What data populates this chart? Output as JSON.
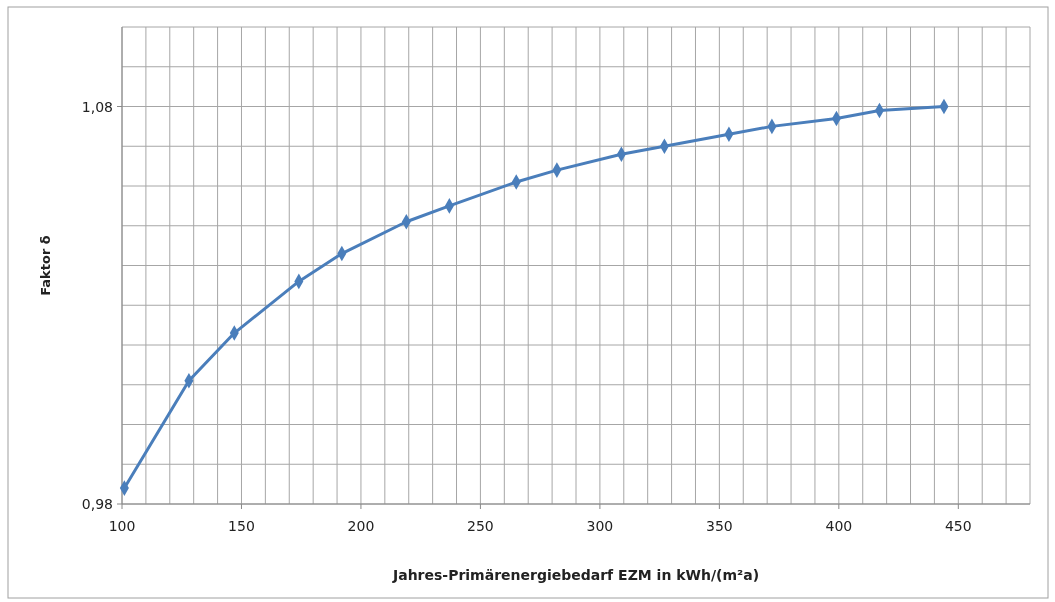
{
  "chart_data": {
    "type": "line",
    "xlabel": "Jahres-Primärenergiebedarf EZM in kWh/(m²a)",
    "ylabel": "Faktor δ",
    "x": [
      101,
      128,
      147,
      174,
      192,
      219,
      237,
      265,
      282,
      309,
      327,
      354,
      372,
      399,
      417,
      444
    ],
    "series": [
      {
        "color": "#4a7ebb",
        "values": [
          0.984,
          1.011,
          1.023,
          1.036,
          1.043,
          1.051,
          1.055,
          1.061,
          1.064,
          1.068,
          1.07,
          1.073,
          1.075,
          1.077,
          1.079,
          1.08
        ]
      }
    ],
    "xlim": [
      100,
      480
    ],
    "xticks": [
      100,
      {
        "value": 110,
        "label": null
      },
      {
        "value": 120,
        "label": null
      },
      {
        "value": 130,
        "label": null
      },
      {
        "value": 140,
        "label": null
      },
      150,
      {
        "value": 160,
        "label": null
      },
      {
        "value": 170,
        "label": null
      },
      {
        "value": 180,
        "label": null
      },
      {
        "value": 190,
        "label": null
      },
      200,
      {
        "value": 210,
        "label": null
      },
      {
        "value": 220,
        "label": null
      },
      {
        "value": 230,
        "label": null
      },
      {
        "value": 240,
        "label": null
      },
      250,
      {
        "value": 260,
        "label": null
      },
      {
        "value": 270,
        "label": null
      },
      {
        "value": 280,
        "label": null
      },
      {
        "value": 290,
        "label": null
      },
      300,
      {
        "value": 310,
        "label": null
      },
      {
        "value": 320,
        "label": null
      },
      {
        "value": 330,
        "label": null
      },
      {
        "value": 340,
        "label": null
      },
      350,
      {
        "value": 360,
        "label": null
      },
      {
        "value": 370,
        "label": null
      },
      {
        "value": 380,
        "label": null
      },
      {
        "value": 390,
        "label": null
      },
      400,
      {
        "value": 410,
        "label": null
      },
      {
        "value": 420,
        "label": null
      },
      {
        "value": 430,
        "label": null
      },
      {
        "value": 440,
        "label": null
      },
      450,
      {
        "value": 460,
        "label": null
      },
      {
        "value": 470,
        "label": null
      },
      {
        "value": 480,
        "label": null
      }
    ],
    "ylim": [
      0.98,
      1.1
    ],
    "yticks": [
      {
        "value": 0.98,
        "label": "0,98"
      },
      {
        "value": 0.99,
        "label": null
      },
      {
        "value": 1.0,
        "label": null
      },
      {
        "value": 1.01,
        "label": null
      },
      {
        "value": 1.02,
        "label": null
      },
      {
        "value": 1.03,
        "label": null
      },
      {
        "value": 1.04,
        "label": null
      },
      {
        "value": 1.05,
        "label": null
      },
      {
        "value": 1.06,
        "label": null
      },
      {
        "value": 1.07,
        "label": null
      },
      {
        "value": 1.08,
        "label": "1,08"
      },
      {
        "value": 1.09,
        "label": null
      },
      {
        "value": 1.1,
        "label": null
      }
    ],
    "grid": true,
    "marker": "diamond",
    "line_style": "solid"
  }
}
